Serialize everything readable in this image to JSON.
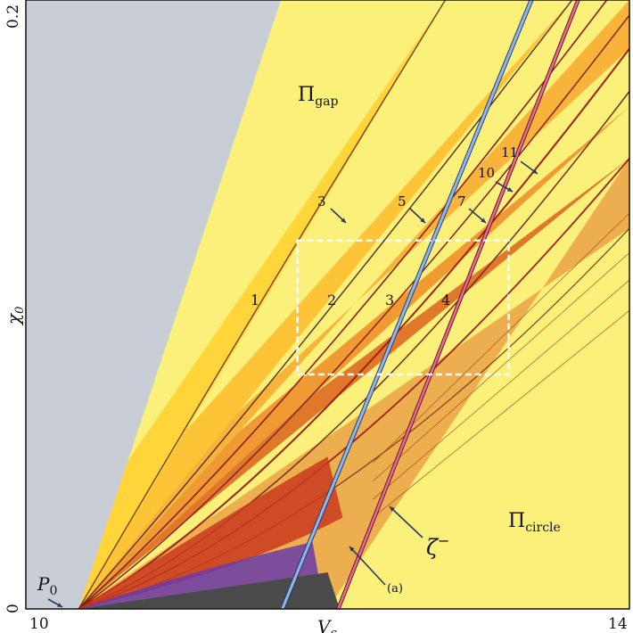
{
  "chart_data": {
    "type": "area",
    "title": "",
    "xlabel": "V",
    "xlabel_sub": "c",
    "ylabel": "χ",
    "ylabel_sub": "0",
    "xlim": [
      10,
      14
    ],
    "ylim": [
      0,
      0.2
    ],
    "x_ticks": [
      "10",
      "14"
    ],
    "y_ticks": [
      "0",
      "0.2"
    ],
    "regions": [
      {
        "name": "Π",
        "sub": "gap",
        "color": "#c9cdd6"
      },
      {
        "name": "Π",
        "sub": "circle",
        "color": "#fbf07a"
      }
    ],
    "region_numbers": [
      "1",
      "2",
      "3",
      "4"
    ],
    "boundary_labels": [
      "3",
      "5",
      "7",
      "10",
      "11"
    ],
    "point_labels": [
      {
        "name": "P",
        "sub": "0",
        "x": 10.35,
        "y": 0.0
      }
    ],
    "curve_labels": [
      {
        "name": "ζ",
        "sup": "−"
      }
    ],
    "annotation": "(a)",
    "inset_box": {
      "x": [
        11.8,
        13.2
      ],
      "y": [
        0.077,
        0.121
      ]
    },
    "colors": {
      "gap": "#c9cdd6",
      "circle": "#fbf07a",
      "band_light": "#ffd53a",
      "band_mid": "#f8b43a",
      "band_dark": "#e0782c",
      "band_red": "#c93a1e",
      "purple": "#6a3ca8",
      "gray": "#4a4a4a",
      "blue_line": "#8fb7e8",
      "pink_line": "#f06a8c"
    }
  }
}
